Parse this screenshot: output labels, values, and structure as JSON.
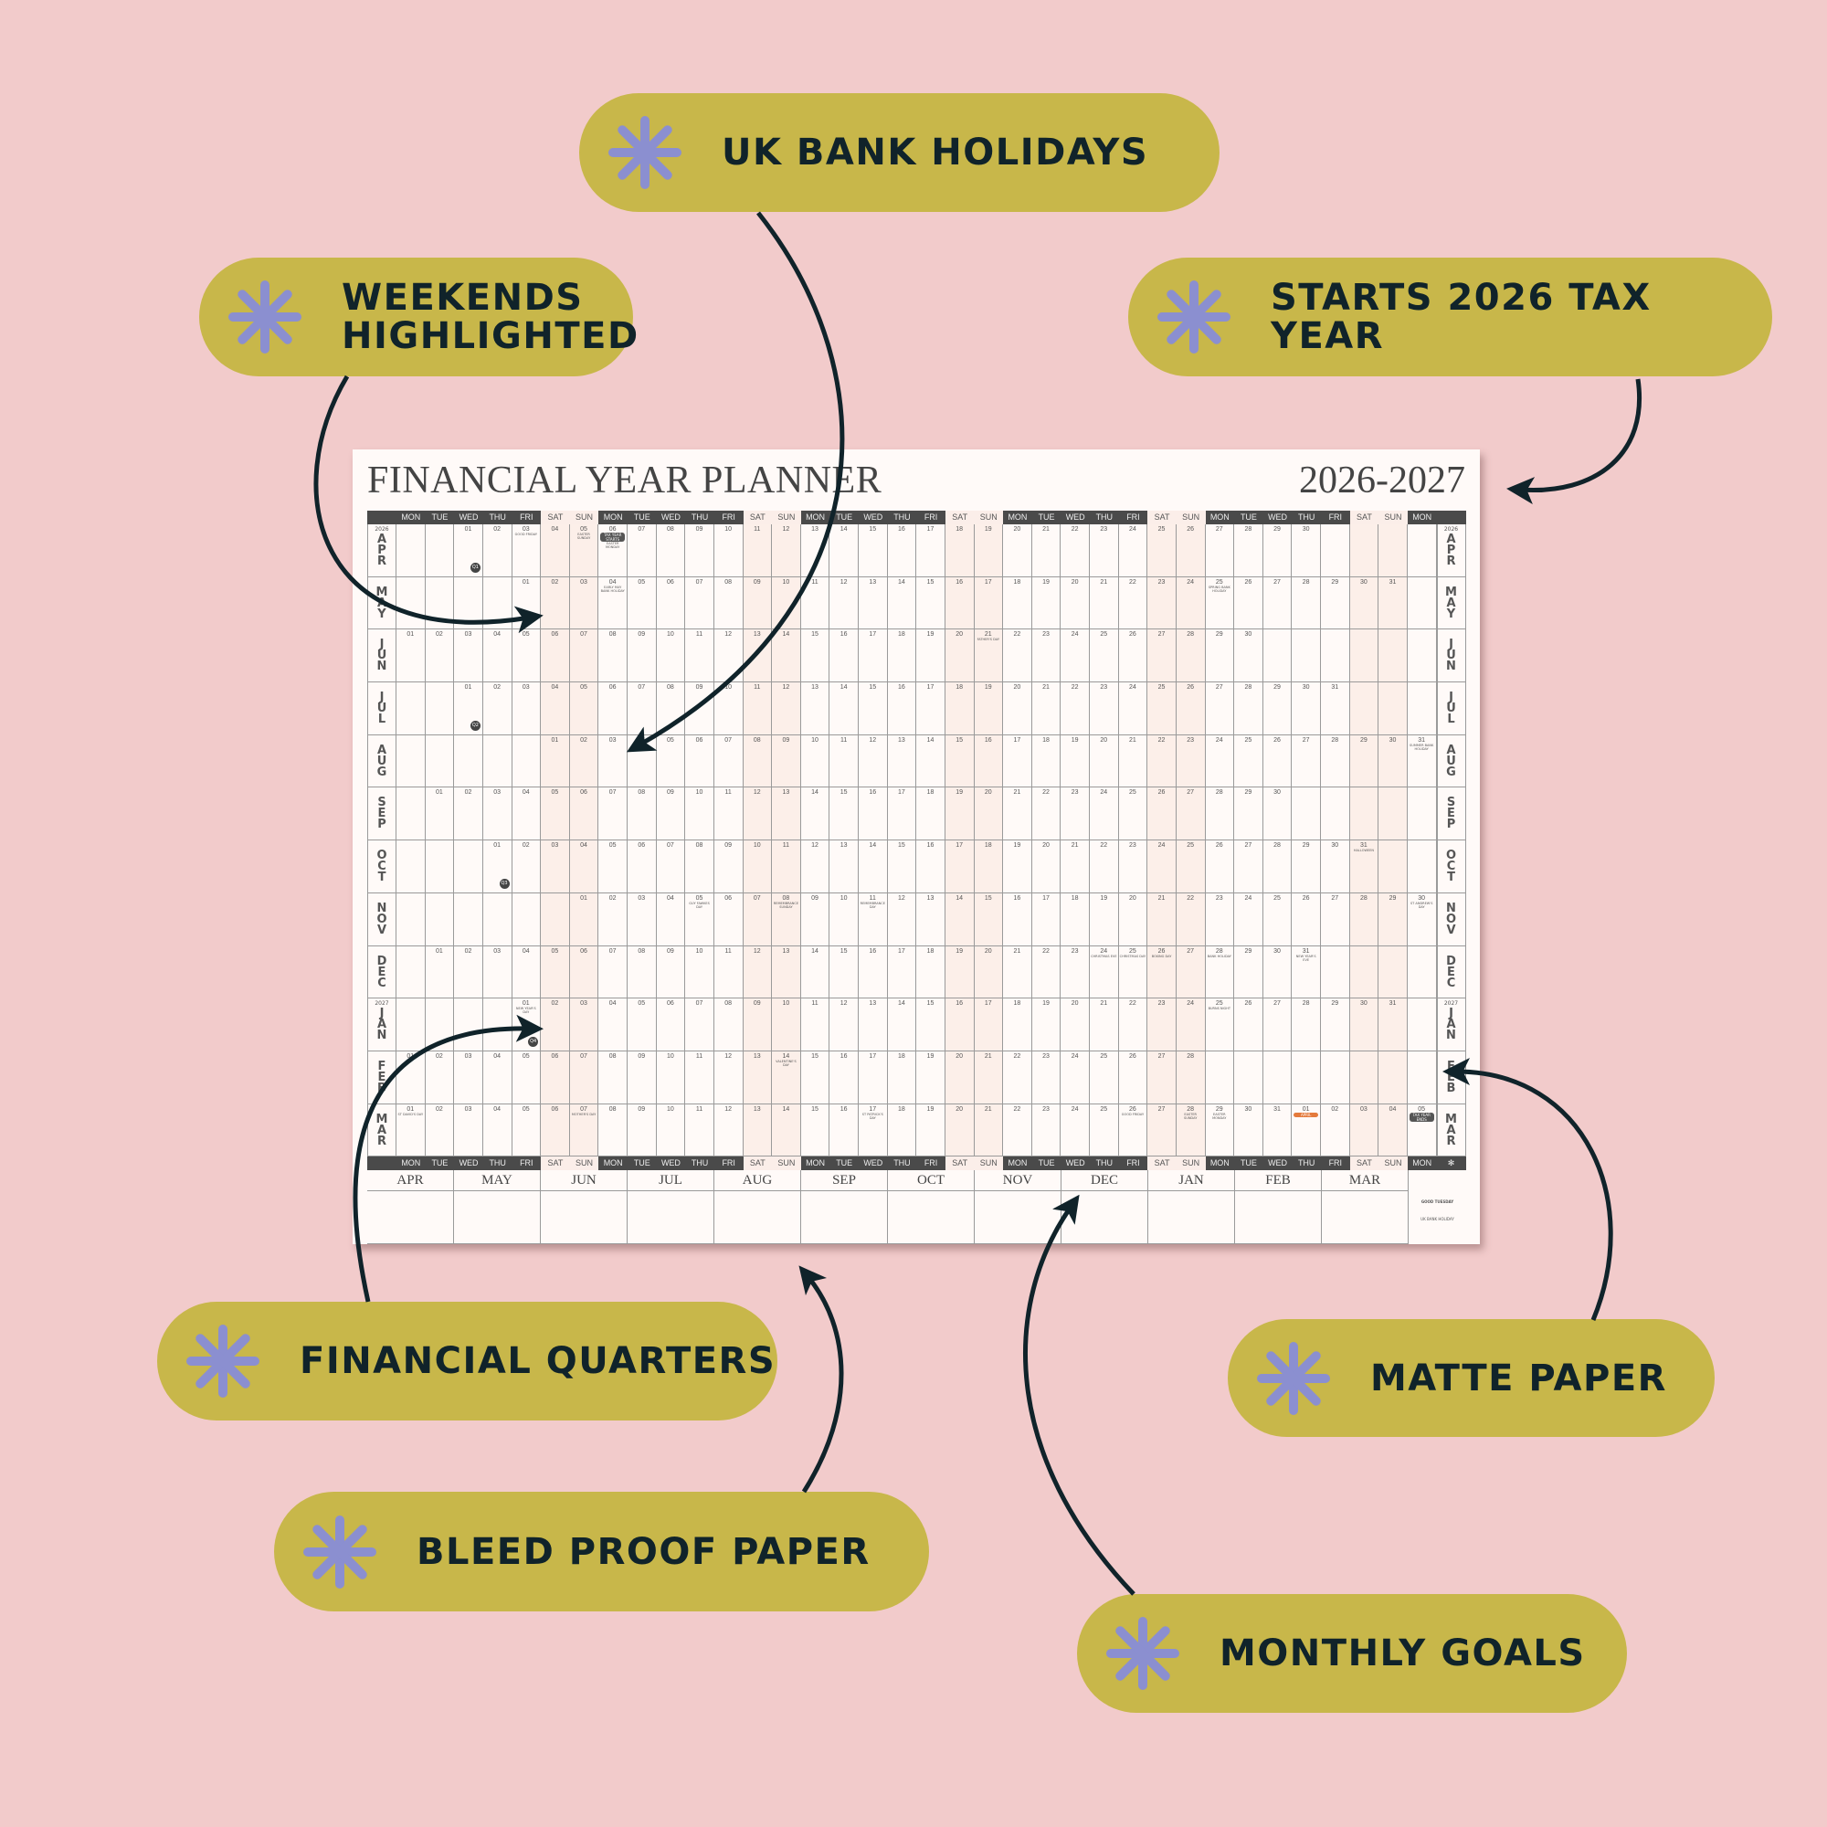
{
  "colors": {
    "background": "#f2cbcb",
    "pill": "#c8b74a",
    "asterisk": "#8b8fd0",
    "text": "#10232a",
    "weekend": "#fcefe9",
    "header": "#4a4a4a",
    "badge_orange": "#e47a3c"
  },
  "callouts": [
    {
      "id": "uk-bank-holidays",
      "label": "UK BANK HOLIDAYS",
      "icon": "asterisk-icon"
    },
    {
      "id": "weekends-highlighted",
      "label": "WEEKENDS\nHIGHLIGHTED",
      "icon": "asterisk-icon"
    },
    {
      "id": "starts-tax-year",
      "label": "STARTS 2026 TAX YEAR",
      "icon": "asterisk-icon"
    },
    {
      "id": "financial-quarters",
      "label": "FINANCIAL QUARTERS",
      "icon": "asterisk-icon"
    },
    {
      "id": "matte-paper",
      "label": "MATTE PAPER",
      "icon": "asterisk-icon"
    },
    {
      "id": "bleed-proof-paper",
      "label": "BLEED PROOF PAPER",
      "icon": "asterisk-icon"
    },
    {
      "id": "monthly-goals",
      "label": "MONTHLY GOALS",
      "icon": "asterisk-icon"
    }
  ],
  "planner": {
    "title": "FINANCIAL YEAR PLANNER",
    "years": "2026-2027",
    "weekdays": [
      "MON",
      "TUE",
      "WED",
      "THU",
      "FRI",
      "SAT",
      "SUN"
    ],
    "footer_symbol": "✻",
    "months": [
      {
        "name": "APR",
        "year": "2026",
        "first_weekday": "WED",
        "days": 30
      },
      {
        "name": "MAY",
        "first_weekday": "FRI",
        "days": 31
      },
      {
        "name": "JUN",
        "first_weekday": "MON",
        "days": 30
      },
      {
        "name": "JUL",
        "first_weekday": "WED",
        "days": 31
      },
      {
        "name": "AUG",
        "first_weekday": "SAT",
        "days": 31
      },
      {
        "name": "SEP",
        "first_weekday": "TUE",
        "days": 30
      },
      {
        "name": "OCT",
        "first_weekday": "THU",
        "days": 31
      },
      {
        "name": "NOV",
        "first_weekday": "SUN",
        "days": 30
      },
      {
        "name": "DEC",
        "first_weekday": "TUE",
        "days": 31
      },
      {
        "name": "JAN",
        "year": "2027",
        "first_weekday": "FRI",
        "days": 31
      },
      {
        "name": "FEB",
        "first_weekday": "MON",
        "days": 28
      },
      {
        "name": "MAR",
        "first_weekday": "MON",
        "days": 31,
        "following_days": 5
      }
    ],
    "notes": [
      {
        "month": "APR",
        "day": 3,
        "text": "GOOD FRIDAY"
      },
      {
        "month": "APR",
        "day": 5,
        "text": "EASTER SUNDAY"
      },
      {
        "month": "APR",
        "day": 6,
        "badge": "TAX YEAR STARTS",
        "text": "EASTER MONDAY"
      },
      {
        "month": "MAY",
        "day": 4,
        "text": "EARLY MAY BANK HOLIDAY"
      },
      {
        "month": "MAY",
        "day": 25,
        "text": "SPRING BANK HOLIDAY"
      },
      {
        "month": "JUN",
        "day": 21,
        "text": "FATHER'S DAY"
      },
      {
        "month": "AUG",
        "day": 31,
        "text": "SUMMER BANK HOLIDAY"
      },
      {
        "month": "OCT",
        "day": 31,
        "text": "HALLOWEEN"
      },
      {
        "month": "NOV",
        "day": 5,
        "text": "GUY FAWKES DAY"
      },
      {
        "month": "NOV",
        "day": 8,
        "text": "REMEMBRANCE SUNDAY"
      },
      {
        "month": "NOV",
        "day": 11,
        "text": "REMEMBRANCE DAY"
      },
      {
        "month": "NOV",
        "day": 30,
        "text": "ST ANDREW'S DAY"
      },
      {
        "month": "DEC",
        "day": 24,
        "text": "CHRISTMAS EVE"
      },
      {
        "month": "DEC",
        "day": 25,
        "text": "CHRISTMAS DAY"
      },
      {
        "month": "DEC",
        "day": 26,
        "text": "BOXING DAY"
      },
      {
        "month": "DEC",
        "day": 28,
        "text": "BANK HOLIDAY"
      },
      {
        "month": "DEC",
        "day": 31,
        "text": "NEW YEAR'S EVE"
      },
      {
        "month": "JAN",
        "day": 1,
        "text": "NEW YEAR'S DAY"
      },
      {
        "month": "JAN",
        "day": 25,
        "text": "BURNS NIGHT"
      },
      {
        "month": "FEB",
        "day": 14,
        "text": "VALENTINE'S DAY"
      },
      {
        "month": "MAR",
        "day": 1,
        "text": "ST DAVID'S DAY"
      },
      {
        "month": "MAR",
        "day": 7,
        "text": "MOTHER'S DAY"
      },
      {
        "month": "MAR",
        "day": 17,
        "text": "ST PATRICK'S DAY"
      },
      {
        "month": "MAR",
        "day": 26,
        "text": "GOOD FRIDAY"
      },
      {
        "month": "MAR",
        "day": 28,
        "text": "EASTER SUNDAY"
      },
      {
        "month": "MAR",
        "day": 29,
        "text": "EASTER MONDAY"
      },
      {
        "month": "MAR",
        "following_day": 1,
        "badge_orange": "APRIL"
      },
      {
        "month": "MAR",
        "following_day": 5,
        "badge": "TAX YEAR ENDS"
      }
    ],
    "quarters": [
      {
        "label": "Q1",
        "month": "APR",
        "weekday": "WED"
      },
      {
        "label": "Q2",
        "month": "JUL",
        "weekday": "WED"
      },
      {
        "label": "Q3",
        "month": "OCT",
        "weekday": "THU"
      },
      {
        "label": "Q4",
        "month": "JAN",
        "weekday": "FRI"
      }
    ],
    "goal_months": [
      "APR",
      "MAY",
      "JUN",
      "JUL",
      "AUG",
      "SEP",
      "OCT",
      "NOV",
      "DEC",
      "JAN",
      "FEB",
      "MAR"
    ],
    "brand": "GOOD TUESDAY",
    "legend": "UK BANK HOLIDAY"
  }
}
